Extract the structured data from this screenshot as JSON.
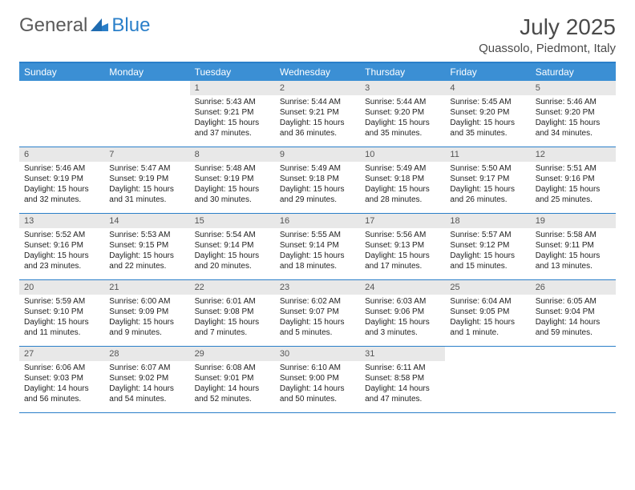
{
  "logo": {
    "text1": "General",
    "text2": "Blue"
  },
  "title": "July 2025",
  "location": "Quassolo, Piedmont, Italy",
  "colors": {
    "header_bg": "#3b8fd4",
    "header_text": "#ffffff",
    "border": "#2a7fc9",
    "daynum_bg": "#e8e8e8",
    "body_text": "#222222",
    "title_text": "#4a4a4a"
  },
  "weekdays": [
    "Sunday",
    "Monday",
    "Tuesday",
    "Wednesday",
    "Thursday",
    "Friday",
    "Saturday"
  ],
  "weeks": [
    [
      {
        "n": "",
        "sr": "",
        "ss": "",
        "dl": ""
      },
      {
        "n": "",
        "sr": "",
        "ss": "",
        "dl": ""
      },
      {
        "n": "1",
        "sr": "Sunrise: 5:43 AM",
        "ss": "Sunset: 9:21 PM",
        "dl": "Daylight: 15 hours and 37 minutes."
      },
      {
        "n": "2",
        "sr": "Sunrise: 5:44 AM",
        "ss": "Sunset: 9:21 PM",
        "dl": "Daylight: 15 hours and 36 minutes."
      },
      {
        "n": "3",
        "sr": "Sunrise: 5:44 AM",
        "ss": "Sunset: 9:20 PM",
        "dl": "Daylight: 15 hours and 35 minutes."
      },
      {
        "n": "4",
        "sr": "Sunrise: 5:45 AM",
        "ss": "Sunset: 9:20 PM",
        "dl": "Daylight: 15 hours and 35 minutes."
      },
      {
        "n": "5",
        "sr": "Sunrise: 5:46 AM",
        "ss": "Sunset: 9:20 PM",
        "dl": "Daylight: 15 hours and 34 minutes."
      }
    ],
    [
      {
        "n": "6",
        "sr": "Sunrise: 5:46 AM",
        "ss": "Sunset: 9:19 PM",
        "dl": "Daylight: 15 hours and 32 minutes."
      },
      {
        "n": "7",
        "sr": "Sunrise: 5:47 AM",
        "ss": "Sunset: 9:19 PM",
        "dl": "Daylight: 15 hours and 31 minutes."
      },
      {
        "n": "8",
        "sr": "Sunrise: 5:48 AM",
        "ss": "Sunset: 9:19 PM",
        "dl": "Daylight: 15 hours and 30 minutes."
      },
      {
        "n": "9",
        "sr": "Sunrise: 5:49 AM",
        "ss": "Sunset: 9:18 PM",
        "dl": "Daylight: 15 hours and 29 minutes."
      },
      {
        "n": "10",
        "sr": "Sunrise: 5:49 AM",
        "ss": "Sunset: 9:18 PM",
        "dl": "Daylight: 15 hours and 28 minutes."
      },
      {
        "n": "11",
        "sr": "Sunrise: 5:50 AM",
        "ss": "Sunset: 9:17 PM",
        "dl": "Daylight: 15 hours and 26 minutes."
      },
      {
        "n": "12",
        "sr": "Sunrise: 5:51 AM",
        "ss": "Sunset: 9:16 PM",
        "dl": "Daylight: 15 hours and 25 minutes."
      }
    ],
    [
      {
        "n": "13",
        "sr": "Sunrise: 5:52 AM",
        "ss": "Sunset: 9:16 PM",
        "dl": "Daylight: 15 hours and 23 minutes."
      },
      {
        "n": "14",
        "sr": "Sunrise: 5:53 AM",
        "ss": "Sunset: 9:15 PM",
        "dl": "Daylight: 15 hours and 22 minutes."
      },
      {
        "n": "15",
        "sr": "Sunrise: 5:54 AM",
        "ss": "Sunset: 9:14 PM",
        "dl": "Daylight: 15 hours and 20 minutes."
      },
      {
        "n": "16",
        "sr": "Sunrise: 5:55 AM",
        "ss": "Sunset: 9:14 PM",
        "dl": "Daylight: 15 hours and 18 minutes."
      },
      {
        "n": "17",
        "sr": "Sunrise: 5:56 AM",
        "ss": "Sunset: 9:13 PM",
        "dl": "Daylight: 15 hours and 17 minutes."
      },
      {
        "n": "18",
        "sr": "Sunrise: 5:57 AM",
        "ss": "Sunset: 9:12 PM",
        "dl": "Daylight: 15 hours and 15 minutes."
      },
      {
        "n": "19",
        "sr": "Sunrise: 5:58 AM",
        "ss": "Sunset: 9:11 PM",
        "dl": "Daylight: 15 hours and 13 minutes."
      }
    ],
    [
      {
        "n": "20",
        "sr": "Sunrise: 5:59 AM",
        "ss": "Sunset: 9:10 PM",
        "dl": "Daylight: 15 hours and 11 minutes."
      },
      {
        "n": "21",
        "sr": "Sunrise: 6:00 AM",
        "ss": "Sunset: 9:09 PM",
        "dl": "Daylight: 15 hours and 9 minutes."
      },
      {
        "n": "22",
        "sr": "Sunrise: 6:01 AM",
        "ss": "Sunset: 9:08 PM",
        "dl": "Daylight: 15 hours and 7 minutes."
      },
      {
        "n": "23",
        "sr": "Sunrise: 6:02 AM",
        "ss": "Sunset: 9:07 PM",
        "dl": "Daylight: 15 hours and 5 minutes."
      },
      {
        "n": "24",
        "sr": "Sunrise: 6:03 AM",
        "ss": "Sunset: 9:06 PM",
        "dl": "Daylight: 15 hours and 3 minutes."
      },
      {
        "n": "25",
        "sr": "Sunrise: 6:04 AM",
        "ss": "Sunset: 9:05 PM",
        "dl": "Daylight: 15 hours and 1 minute."
      },
      {
        "n": "26",
        "sr": "Sunrise: 6:05 AM",
        "ss": "Sunset: 9:04 PM",
        "dl": "Daylight: 14 hours and 59 minutes."
      }
    ],
    [
      {
        "n": "27",
        "sr": "Sunrise: 6:06 AM",
        "ss": "Sunset: 9:03 PM",
        "dl": "Daylight: 14 hours and 56 minutes."
      },
      {
        "n": "28",
        "sr": "Sunrise: 6:07 AM",
        "ss": "Sunset: 9:02 PM",
        "dl": "Daylight: 14 hours and 54 minutes."
      },
      {
        "n": "29",
        "sr": "Sunrise: 6:08 AM",
        "ss": "Sunset: 9:01 PM",
        "dl": "Daylight: 14 hours and 52 minutes."
      },
      {
        "n": "30",
        "sr": "Sunrise: 6:10 AM",
        "ss": "Sunset: 9:00 PM",
        "dl": "Daylight: 14 hours and 50 minutes."
      },
      {
        "n": "31",
        "sr": "Sunrise: 6:11 AM",
        "ss": "Sunset: 8:58 PM",
        "dl": "Daylight: 14 hours and 47 minutes."
      },
      {
        "n": "",
        "sr": "",
        "ss": "",
        "dl": ""
      },
      {
        "n": "",
        "sr": "",
        "ss": "",
        "dl": ""
      }
    ]
  ]
}
